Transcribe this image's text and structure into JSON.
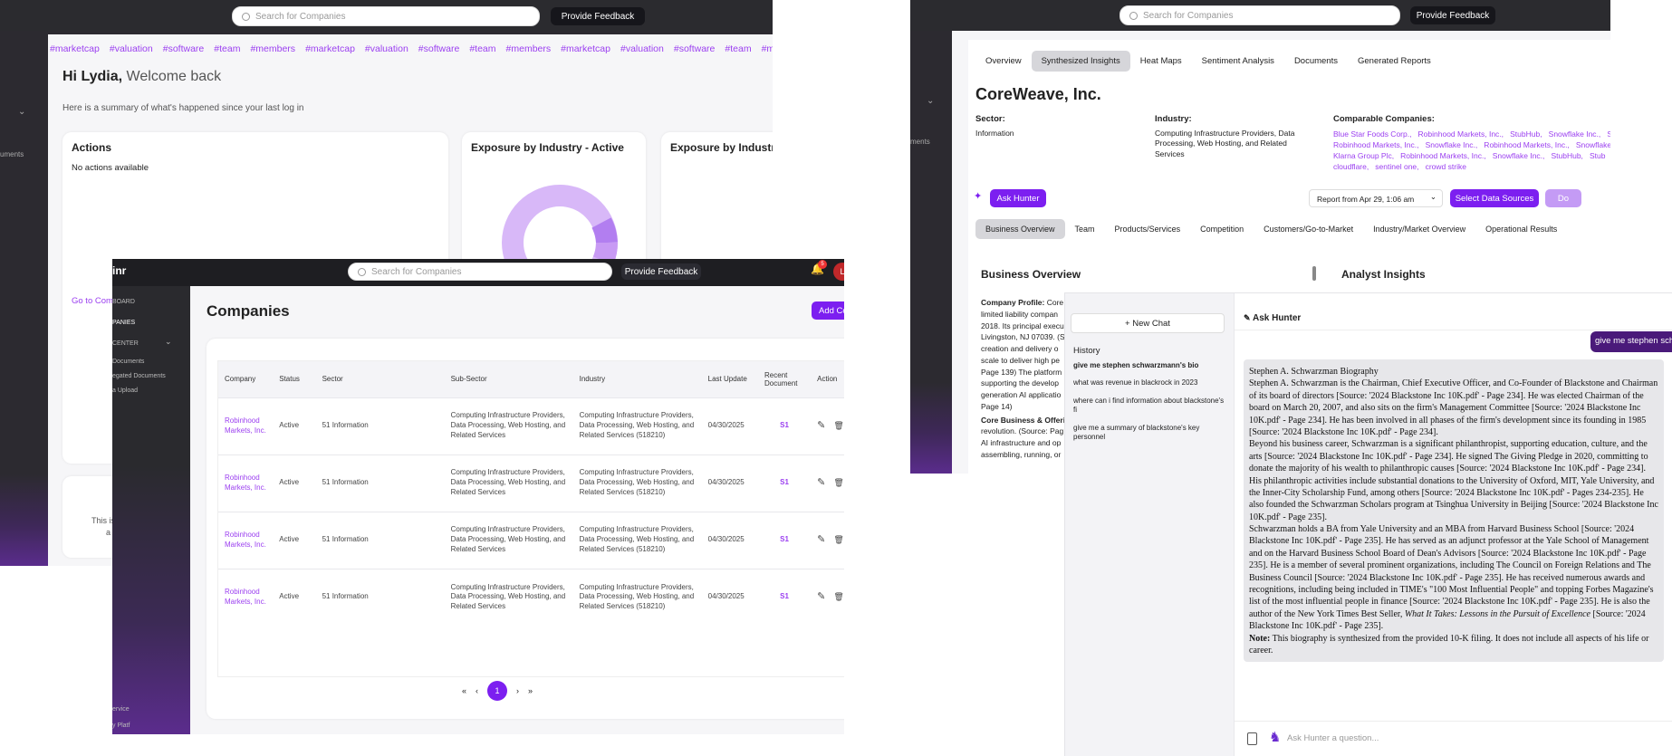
{
  "search_placeholder": "Search for Companies",
  "feedback_label": "Provide Feedback",
  "dashboard": {
    "tags": [
      "#marketcap",
      "#valuation",
      "#software",
      "#team",
      "#members",
      "#marketcap",
      "#valuation",
      "#software",
      "#team",
      "#members",
      "#marketcap",
      "#valuation",
      "#software",
      "#team",
      "#mem"
    ],
    "greeting_name": "Hi Lydia,",
    "greeting_rest": "Welcome back",
    "summary": "Here is a summary of what's happened since your last log in",
    "actions_title": "Actions",
    "actions_empty": "No actions available",
    "exposure_active_title": "Exposure by Industry - Active",
    "exposure_title_2": "Exposure by Industr",
    "go_to_link": "Go to Com",
    "side_text": "uments",
    "footer_text_1": "This is",
    "footer_text_2": "a"
  },
  "companies": {
    "logo": "inr",
    "notif_count": "5",
    "avatar_letter": "L",
    "sidebar": [
      "BOARD",
      "PANIES",
      "CENTER",
      "Documents",
      "egated Documents",
      "a Upload"
    ],
    "sidebar_bottom": [
      "ervice",
      "y Platf"
    ],
    "title": "Companies",
    "add_button": "Add Co",
    "columns": [
      "Company",
      "Status",
      "Sector",
      "Sub-Sector",
      "Industry",
      "Last Update",
      "Recent Document",
      "Action"
    ],
    "rows": [
      {
        "company": "Robinhood Markets, Inc.",
        "status": "Active",
        "sector": "51 Information",
        "sub_sector": "Computing Infrastructure Providers, Data Processing, Web Hosting, and Related Services",
        "industry": "Computing Infrastructure Providers, Data Processing, Web Hosting, and Related Services (518210)",
        "last_update": "04/30/2025",
        "doc": "S1"
      },
      {
        "company": "Robinhood Markets, Inc.",
        "status": "Active",
        "sector": "51 Information",
        "sub_sector": "Computing Infrastructure Providers, Data Processing, Web Hosting, and Related Services",
        "industry": "Computing Infrastructure Providers, Data Processing, Web Hosting, and Related Services (518210)",
        "last_update": "04/30/2025",
        "doc": "S1"
      },
      {
        "company": "Robinhood Markets, Inc.",
        "status": "Active",
        "sector": "51 Information",
        "sub_sector": "Computing Infrastructure Providers, Data Processing, Web Hosting, and Related Services",
        "industry": "Computing Infrastructure Providers, Data Processing, Web Hosting, and Related Services (518210)",
        "last_update": "04/30/2025",
        "doc": "S1"
      },
      {
        "company": "Robinhood Markets, Inc.",
        "status": "Active",
        "sector": "51 Information",
        "sub_sector": "Computing Infrastructure Providers, Data Processing, Web Hosting, and Related Services",
        "industry": "Computing Infrastructure Providers, Data Processing, Web Hosting, and Related Services (518210)",
        "last_update": "04/30/2025",
        "doc": "S1"
      }
    ],
    "pagination": [
      "«",
      "‹",
      "1",
      "›",
      "»"
    ]
  },
  "coreweave": {
    "tabs": [
      "Overview",
      "Synthesized Insights",
      "Heat Maps",
      "Sentiment Analysis",
      "Documents",
      "Generated Reports"
    ],
    "name": "CoreWeave, Inc.",
    "sector_label": "Sector:",
    "sector_value": "Information",
    "industry_label": "Industry:",
    "industry_value": "Computing Infrastructure Providers, Data Processing, Web Hosting, and Related Services",
    "comparable_label": "Comparable Companies:",
    "comparable_lines": [
      "Blue Star Foods Corp.,   Robinhood Markets, Inc.,   StubHub,   Snowflake Inc.,   S",
      "Robinhood Markets, Inc.,   Snowflake Inc.,   Robinhood Markets, Inc.,   Snowflake",
      "Klarna Group Plc,   Robinhood Markets, Inc.,   Snowflake Inc.,   StubHub,   Stub",
      "cloudflare,   sentinel one,   crowd strike"
    ],
    "ask_hunter": "Ask Hunter",
    "report_select": "Report from Apr 29, 1:06 am",
    "select_sources": "Select Data Sources",
    "do_btn": "Do",
    "subtabs": [
      "Business Overview",
      "Team",
      "Products/Services",
      "Competition",
      "Customers/Go-to-Market",
      "Industry/Market Overview",
      "Operational Results"
    ],
    "section_title": "Business Overview",
    "insights_title": "Analyst Insights",
    "profile_label": "Company Profile:",
    "profile_lines": [
      " Core",
      "limited liability compan",
      "2018. Its principal execu",
      "Livingston, NJ 07039. (S",
      "creation and delivery o",
      "scale to deliver high pe",
      "Page 139) The platform",
      "supporting the develop",
      "generation AI applicatio"
    ],
    "profile_line_1": "Page 14)",
    "core_label": "Core Business & Offeri",
    "core_lines": [
      "revolution. (Source: Pag",
      "AI infrastructure and op",
      "assembling, running, or"
    ],
    "sidebar_text": "ments"
  },
  "chat": {
    "new_chat": "+ New Chat",
    "history_label": "History",
    "history": [
      "give me stephen schwarzmann's bio",
      "what was revenue in blackrock in 2023",
      "where can i find information about blackstone's fi",
      "give me a summary of blackstone's key personnel"
    ],
    "header": "Ask Hunter",
    "user_msg": "give me stephen schw",
    "answer_title": "Stephen A. Schwarzman Biography",
    "p1": "Stephen A. Schwarzman is the Chairman, Chief Executive Officer, and Co-Founder of Blackstone and Chairman of its board of directors [Source: '2024 Blackstone Inc 10K.pdf' - Page 234]. He was elected Chairman of the board on March 20, 2007, and also sits on the firm's Management Committee [Source: '2024 Blackstone Inc 10K.pdf' - Page 234]. He has been involved in all phases of the firm's development since its founding in 1985 [Source: '2024 Blackstone Inc 10K.pdf' - Page 234].",
    "p2": "Beyond his business career, Schwarzman is a significant philanthropist, supporting education, culture, and the arts [Source: '2024 Blackstone Inc 10K.pdf' - Page 234]. He signed The Giving Pledge in 2020, committing to donate the majority of his wealth to philanthropic causes [Source: '2024 Blackstone Inc 10K.pdf' - Page 234]. His philanthropic activities include substantial donations to the University of Oxford, MIT, Yale University, and the Inner-City Scholarship Fund, among others [Source: '2024 Blackstone Inc 10K.pdf' - Pages 234-235]. He also founded the Schwarzman Scholars program at Tsinghua University in Beijing [Source: '2024 Blackstone Inc 10K.pdf' - Page 235].",
    "p3a": "Schwarzman holds a BA from Yale University and an MBA from Harvard Business School [Source: '2024 Blackstone Inc 10K.pdf' - Page 235]. He has served as an adjunct professor at the Yale School of Management and on the Harvard Business School Board of Dean's Advisors [Source: '2024 Blackstone Inc 10K.pdf' - Page 235]. He is a member of several prominent organizations, including The Council on Foreign Relations and The Business Council [Source: '2024 Blackstone Inc 10K.pdf' - Page 235]. He has received numerous awards and recognitions, including being included in TIME's \"100 Most Influential People\" and topping Forbes Magazine's list of the most influential people in finance [Source: '2024 Blackstone Inc 10K.pdf' - Page 235]. He is also the author of the New York Times Best Seller, ",
    "p3_book": "What It Takes: Lessons in the Pursuit of Excellence",
    "p3b": " [Source: '2024 Blackstone Inc 10K.pdf' - Page 235].",
    "note_label": "Note:",
    "note_text": " This biography is synthesized from the provided 10-K filing. It does not include all aspects of his life or career.",
    "input_placeholder": "Ask Hunter a question..."
  }
}
